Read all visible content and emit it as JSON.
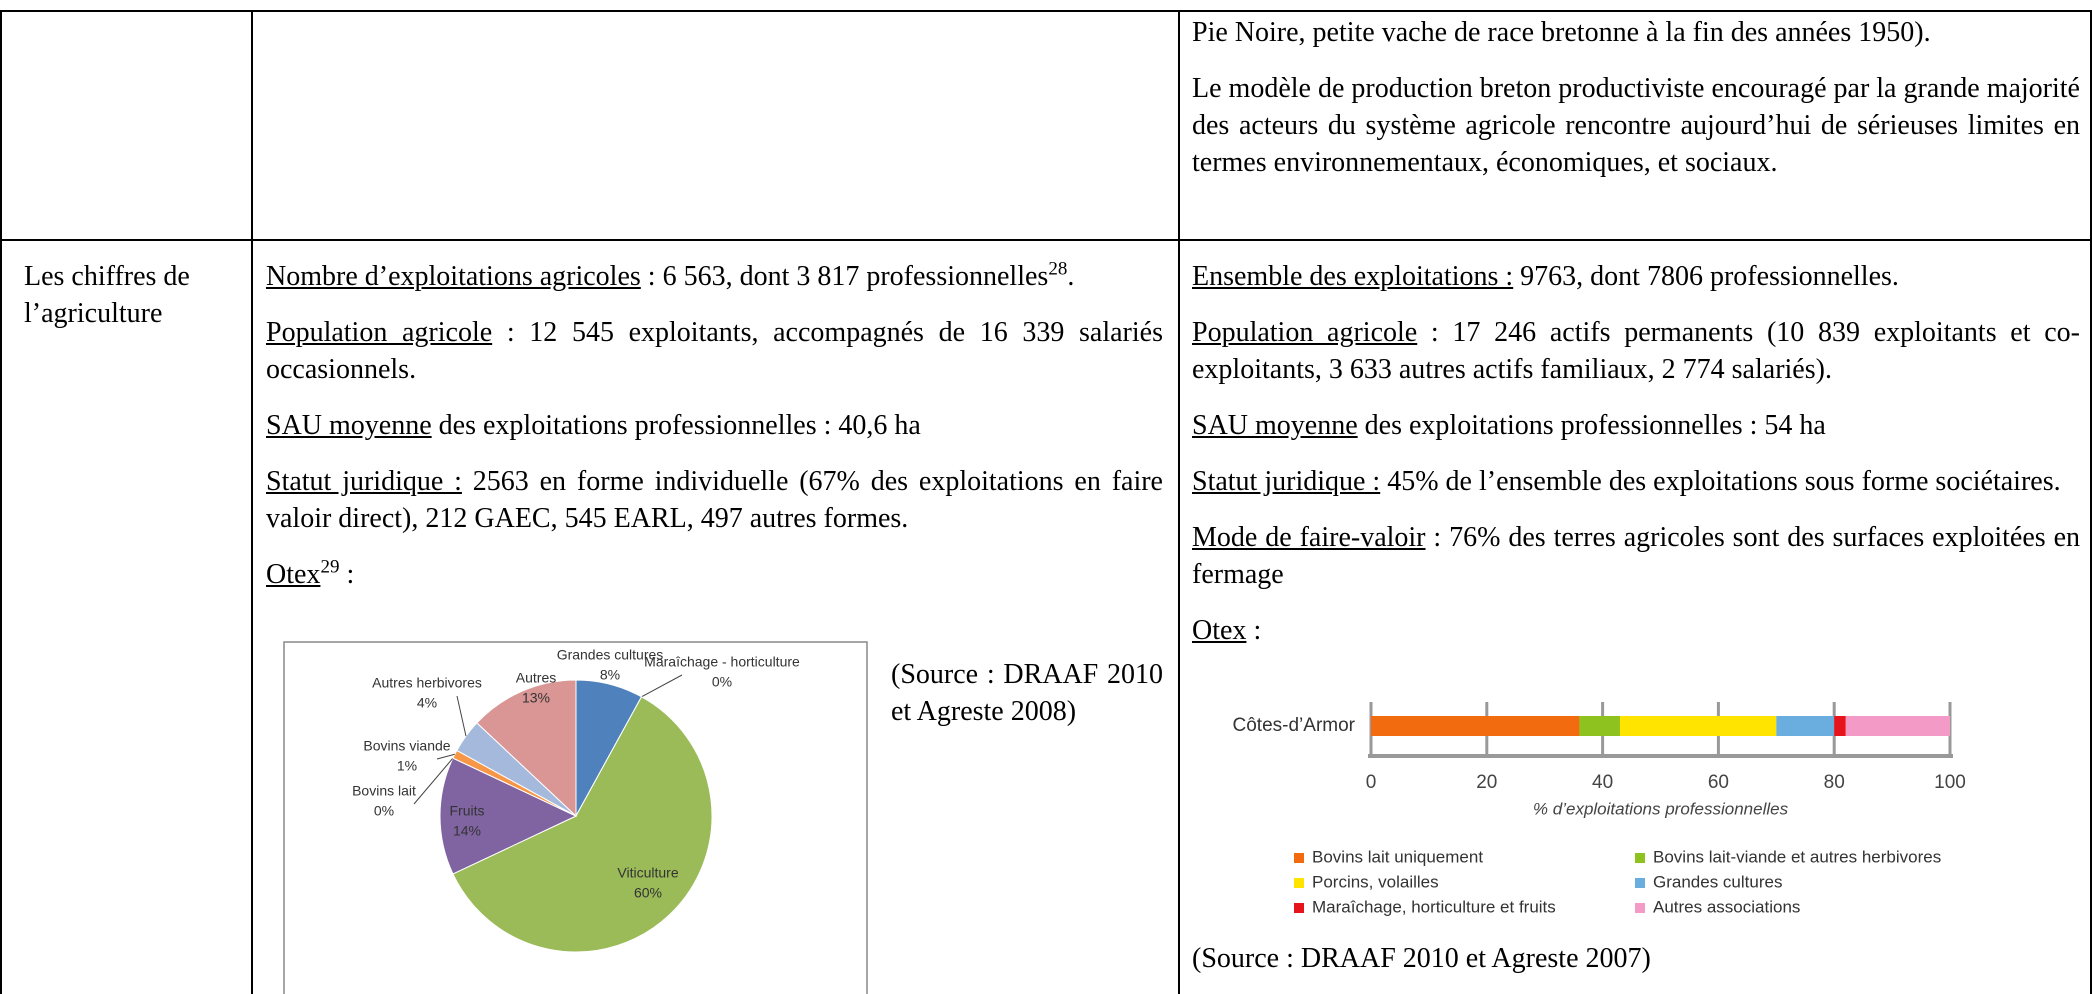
{
  "row1": {
    "right": [
      [
        {
          "text": "Pie Noire, petite vache de race bretonne à la fin des années 1950)."
        }
      ],
      [
        {
          "text": "Le modèle de production breton productiviste encouragé par la grande majorité des acteurs du système agricole rencontre aujourd’hui de sérieuses limites en termes environnementaux, économiques, et sociaux."
        }
      ]
    ]
  },
  "row2": {
    "label": "Les chiffres de l’agriculture",
    "left": [
      [
        {
          "text": "Nombre d’exploitations agricoles",
          "u": true
        },
        {
          "text": " : 6 563, dont 3 817 professionnelles"
        },
        {
          "text": "28",
          "sup": true
        },
        {
          "text": "."
        }
      ],
      [
        {
          "text": "Population agricole",
          "u": true
        },
        {
          "text": " : 12 545 exploitants, accompagnés de 16 339 salariés occasionnels."
        }
      ],
      [
        {
          "text": "SAU moyenne",
          "u": true
        },
        {
          "text": " des exploitations professionnelles : 40,6 ha"
        }
      ],
      [
        {
          "text": "Statut juridique :",
          "u": true
        },
        {
          "text": " 2563 en forme individuelle (67% des exploitations en faire valoir direct), 212 GAEC, 545 EARL, 497 autres formes."
        }
      ],
      [
        {
          "text": "Otex",
          "u": true
        },
        {
          "text": "29",
          "sup": true
        },
        {
          "text": " :"
        }
      ]
    ],
    "left_source": "(Source : DRAAF 2010 et Agreste 2008)",
    "right": [
      [
        {
          "text": "Ensemble des exploitations :",
          "u": true
        },
        {
          "text": " 9763, dont 7806 professionnelles."
        }
      ],
      [
        {
          "text": "Population agricole",
          "u": true
        },
        {
          "text": " : 17 246 actifs permanents (10 839  exploitants et co-exploitants, 3 633 autres actifs familiaux, 2 774 salariés)."
        }
      ],
      [
        {
          "text": "SAU moyenne",
          "u": true
        },
        {
          "text": " des exploitations professionnelles : 54 ha"
        }
      ],
      [
        {
          "text": "Statut juridique :",
          "u": true
        },
        {
          "text": " 45% de l’ensemble des exploitations sous forme sociétaires."
        }
      ],
      [
        {
          "text": "Mode de faire-valoir",
          "u": true
        },
        {
          "text": " : 76% des terres agricoles sont des surfaces exploitées en fermage"
        }
      ],
      [
        {
          "text": "Otex",
          "u": true
        },
        {
          "text": " :"
        }
      ]
    ],
    "right_source": "(Source : DRAAF 2010 et Agreste 2007)"
  },
  "chart_data": [
    {
      "type": "pie",
      "categories": [
        "Grandes cultures",
        "Maraîchage - horticulture",
        "Viticulture",
        "Fruits",
        "Bovins lait",
        "Bovins viande",
        "Autres herbivores",
        "Autres"
      ],
      "values": [
        8,
        0,
        60,
        14,
        0,
        1,
        4,
        13
      ],
      "value_labels": [
        "8%",
        "0%",
        "60%",
        "14%",
        "0%",
        "1%",
        "4%",
        "13%"
      ],
      "colors": [
        "#4f81bd",
        "#c0504d",
        "#9bbb59",
        "#8064a2",
        "#4bacc6",
        "#f79646",
        "#a5b9dc",
        "#d99694"
      ]
    },
    {
      "type": "stacked-bar",
      "categories": [
        "Côtes-d’Armor"
      ],
      "series": [
        {
          "name": "Bovins lait uniquement",
          "color": "#f36b0f",
          "values": [
            36
          ]
        },
        {
          "name": "Bovins lait-viande et autres herbivores",
          "color": "#8dc21f",
          "values": [
            7
          ]
        },
        {
          "name": "Porcins, volailles",
          "color": "#ffe400",
          "values": [
            27
          ]
        },
        {
          "name": "Grandes cultures",
          "color": "#6aaee0",
          "values": [
            10
          ]
        },
        {
          "name": "Maraîchage, horticulture et fruits",
          "color": "#e8141b",
          "values": [
            2
          ]
        },
        {
          "name": "Autres associations",
          "color": "#f49ac6",
          "values": [
            18
          ]
        }
      ],
      "xlim": [
        0,
        100
      ],
      "xticks": [
        0,
        20,
        40,
        60,
        80,
        100
      ],
      "xlabel": "% d’exploitations professionnelles"
    }
  ]
}
